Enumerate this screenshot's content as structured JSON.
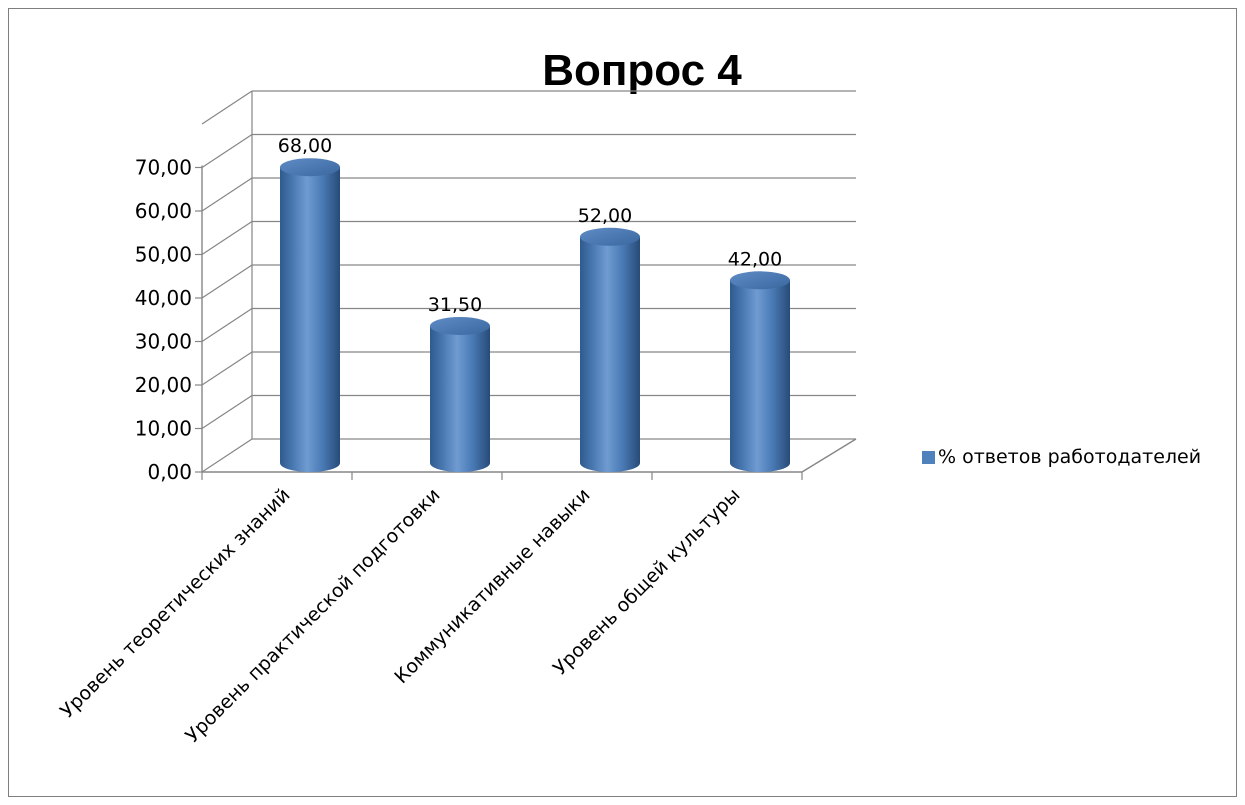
{
  "chart_data": {
    "type": "bar",
    "style": "3d-cylinder",
    "title": "Вопрос 4",
    "categories": [
      "Уровень теоретических знаний",
      "Уровень практической подготовки",
      "Коммуникативные навыки",
      "Уровень общей культуры"
    ],
    "series": [
      {
        "name": "% ответов работодателей",
        "values": [
          68.0,
          31.5,
          52.0,
          42.0
        ],
        "labels": [
          "68,00",
          "31,50",
          "52,00",
          "42,00"
        ],
        "color": "#4f81bd"
      }
    ],
    "y_ticks": [
      "0,00",
      "10,00",
      "20,00",
      "30,00",
      "40,00",
      "50,00",
      "60,00",
      "70,00"
    ],
    "ylim": [
      0,
      70
    ],
    "grid": true,
    "legend_position": "right"
  }
}
